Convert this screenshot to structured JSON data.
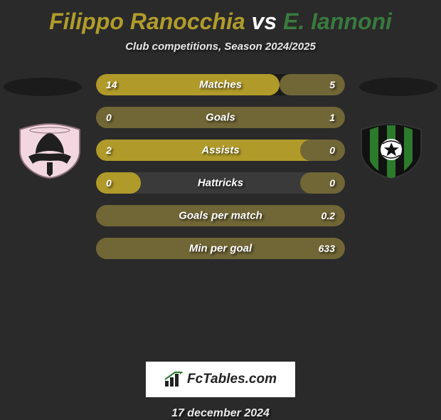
{
  "title": {
    "player1": "Filippo Ranocchia",
    "vs": "vs",
    "player2": "E. Iannoni",
    "player1_color": "#b19c2b",
    "player2_color": "#3a7a3e"
  },
  "subtitle": "Club competitions, Season 2024/2025",
  "colors": {
    "background": "#2a2a2a",
    "bar_base_dark": "#1b1b1b",
    "bar_base_dark_alt": "#3a3a3a",
    "player1_bar": "#b09b2a",
    "player2_bar": "#706636",
    "text": "#ffffff"
  },
  "stats": [
    {
      "label": "Matches",
      "p1_value": "14",
      "p2_value": "5",
      "p1_num": 14,
      "p2_num": 5,
      "bar_base_color": "#1b1b1b"
    },
    {
      "label": "Goals",
      "p1_value": "0",
      "p2_value": "1",
      "p1_num": 0,
      "p2_num": 1,
      "bar_base_color": "#3a3a3a"
    },
    {
      "label": "Assists",
      "p1_value": "2",
      "p2_value": "0",
      "p1_num": 2,
      "p2_num": 0,
      "bar_base_color": "#1b1b1b"
    },
    {
      "label": "Hattricks",
      "p1_value": "0",
      "p2_value": "0",
      "p1_num": 0,
      "p2_num": 0,
      "bar_base_color": "#3a3a3a"
    },
    {
      "label": "Goals per match",
      "p1_value": "",
      "p2_value": "0.2",
      "p1_num": 0,
      "p2_num": 0.2,
      "bar_base_color": "#1b1b1b"
    },
    {
      "label": "Min per goal",
      "p1_value": "",
      "p2_value": "633",
      "p1_num": 0,
      "p2_num": 633,
      "bar_base_color": "#3a3a3a"
    }
  ],
  "bar_visual": {
    "p1_fill_color": "#b09b2a",
    "p2_fill_color": "#706636",
    "min_fill_pct": 18
  },
  "clubs": {
    "left": {
      "name": "Palermo",
      "shield_bg": "#f2d7e0",
      "accent": "#222222",
      "eagle": "#1f1f1f"
    },
    "right": {
      "name": "Sassuolo",
      "shield_bg": "#111111",
      "stripe": "#2c7a2c",
      "ball": "#ffffff"
    }
  },
  "footer": {
    "brand": "FcTables.com",
    "date": "17 december 2024"
  }
}
